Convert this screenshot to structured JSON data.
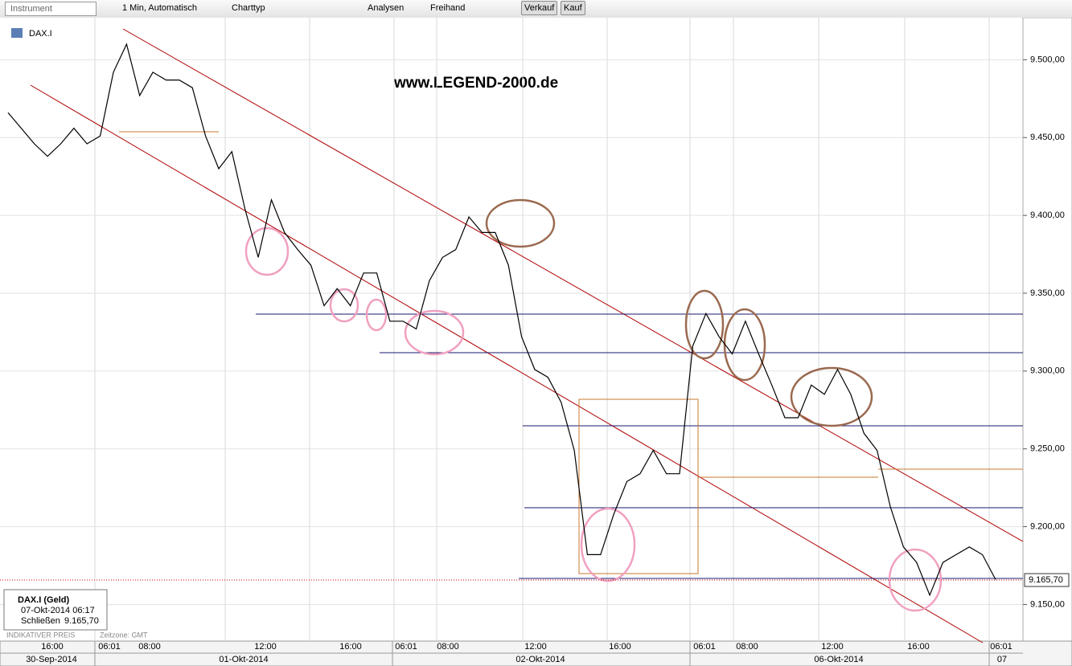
{
  "toolbar": {
    "instrument": "Instrument",
    "interval": "1 Min, Automatisch",
    "charttype": "Charttyp",
    "analyses": "Analysen",
    "freehand": "Freihand",
    "sell": "Verkauf",
    "buy": "Kauf"
  },
  "symbol": "DAX.I",
  "info": {
    "title": "DAX.I (Geld)",
    "time": "07-Okt-2014 06:17",
    "close_label": "Schließen",
    "close": "9.165,70"
  },
  "footer": {
    "note": "INDIKATIVER PREIS",
    "timezone": "Zeitzone: GMT"
  },
  "time_labels": [
    "16:00",
    "06:01",
    "08:00",
    "12:00",
    "16:00",
    "06:01",
    "08:00",
    "12:00",
    "16:00",
    "06:01",
    "08:00",
    "12:00",
    "16:00",
    "06:01"
  ],
  "date_labels": [
    "30-Sep-2014",
    "01-Okt-2014",
    "02-Okt-2014",
    "06-Okt-2014",
    "07"
  ],
  "chart_data": {
    "type": "line",
    "title": "www.LEGEND-2000.de",
    "series": [
      {
        "name": "DAX.I",
        "color": "#000000",
        "values": [
          9466,
          9456,
          9446,
          9438,
          9446,
          9456,
          9446,
          9451,
          9492,
          9510,
          9477,
          9492,
          9487,
          9487,
          9482,
          9451,
          9430,
          9441,
          9404,
          9373,
          9410,
          9389,
          9378,
          9368,
          9342,
          9353,
          9342,
          9363,
          9363,
          9332,
          9332,
          9327,
          9358,
          9373,
          9378,
          9399,
          9389,
          9389,
          9368,
          9322,
          9301,
          9296,
          9280,
          9249,
          9182,
          9182,
          9208,
          9229,
          9234,
          9249,
          9234,
          9234,
          9316,
          9337,
          9322,
          9311,
          9332,
          9311,
          9291,
          9270,
          9270,
          9291,
          9285,
          9301,
          9285,
          9260,
          9249,
          9213,
          9187,
          9177,
          9156,
          9177,
          9182,
          9187,
          9182,
          9166
        ]
      }
    ],
    "last_price": {
      "value": 9165.7,
      "label": "9.165,70"
    },
    "ylim": [
      9127,
      9526
    ],
    "yticks": [
      {
        "value": 9150,
        "label": "9.150,00"
      },
      {
        "value": 9200,
        "label": "9.200,00"
      },
      {
        "value": 9250,
        "label": "9.250,00"
      },
      {
        "value": 9300,
        "label": "9.300,00"
      },
      {
        "value": 9350,
        "label": "9.350,00"
      },
      {
        "value": 9400,
        "label": "9.400,00"
      },
      {
        "value": 9450,
        "label": "9.450,00"
      },
      {
        "value": 9500,
        "label": "9.500,00"
      }
    ],
    "grid": true
  }
}
